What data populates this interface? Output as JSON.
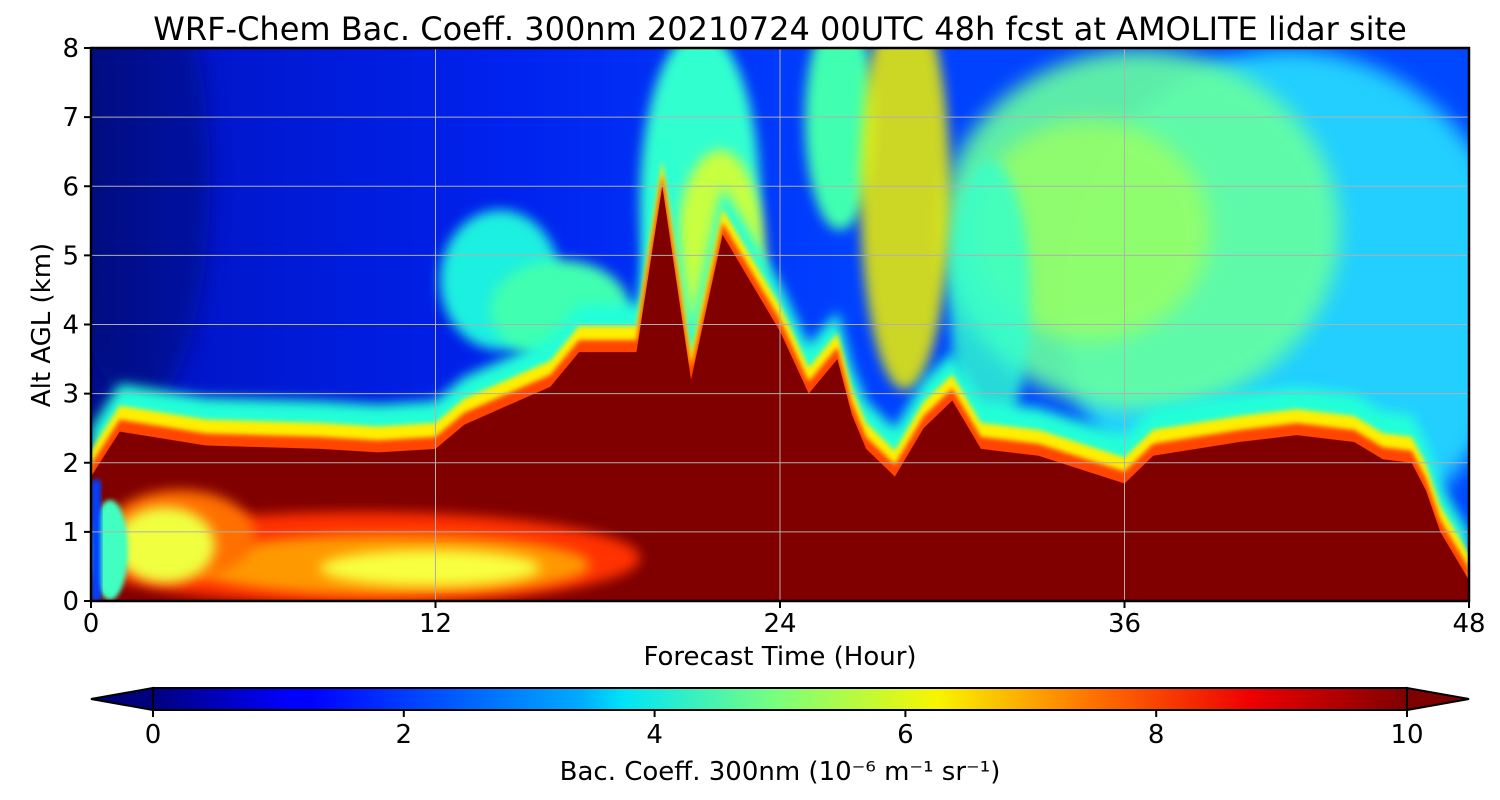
{
  "chart_data": {
    "type": "heatmap",
    "title": "WRF-Chem Bac. Coeff. 300nm  20210724 00UTC 48h fcst at AMOLITE lidar site",
    "xlabel": "Forecast Time (Hour)",
    "ylabel": "Alt AGL (km)",
    "xlim": [
      0,
      48
    ],
    "ylim": [
      0,
      8
    ],
    "xticks": [
      "0",
      "12",
      "24",
      "36",
      "48"
    ],
    "yticks": [
      "0",
      "1",
      "2",
      "3",
      "4",
      "5",
      "6",
      "7",
      "8"
    ],
    "grid": true,
    "colormap": "jet",
    "colorbar": {
      "label": "Bac. Coeff. 300nm  (10⁻⁶ m⁻¹ sr⁻¹)",
      "range": [
        0,
        10
      ],
      "ticks": [
        "0",
        "2",
        "4",
        "6",
        "8",
        "10"
      ],
      "extend": "both",
      "orientation": "horizontal"
    },
    "layer_top_km": [
      {
        "hour": 0,
        "alt": 1.8
      },
      {
        "hour": 1,
        "alt": 2.45
      },
      {
        "hour": 4,
        "alt": 2.25
      },
      {
        "hour": 8,
        "alt": 2.2
      },
      {
        "hour": 10,
        "alt": 2.15
      },
      {
        "hour": 12,
        "alt": 2.2
      },
      {
        "hour": 13,
        "alt": 2.55
      },
      {
        "hour": 16,
        "alt": 3.1
      },
      {
        "hour": 17,
        "alt": 3.6
      },
      {
        "hour": 19,
        "alt": 3.6
      },
      {
        "hour": 19.9,
        "alt": 6.0
      },
      {
        "hour": 20.9,
        "alt": 3.2
      },
      {
        "hour": 22,
        "alt": 5.3
      },
      {
        "hour": 24,
        "alt": 3.9
      },
      {
        "hour": 25,
        "alt": 3.0
      },
      {
        "hour": 26,
        "alt": 3.5
      },
      {
        "hour": 26.5,
        "alt": 2.7
      },
      {
        "hour": 27,
        "alt": 2.2
      },
      {
        "hour": 28,
        "alt": 1.8
      },
      {
        "hour": 29,
        "alt": 2.5
      },
      {
        "hour": 30,
        "alt": 2.9
      },
      {
        "hour": 31,
        "alt": 2.2
      },
      {
        "hour": 33,
        "alt": 2.1
      },
      {
        "hour": 36,
        "alt": 1.7
      },
      {
        "hour": 37,
        "alt": 2.1
      },
      {
        "hour": 40,
        "alt": 2.3
      },
      {
        "hour": 42,
        "alt": 2.4
      },
      {
        "hour": 44,
        "alt": 2.3
      },
      {
        "hour": 45,
        "alt": 2.05
      },
      {
        "hour": 46,
        "alt": 2.0
      },
      {
        "hour": 46.5,
        "alt": 1.6
      },
      {
        "hour": 47,
        "alt": 1.0
      },
      {
        "hour": 48,
        "alt": 0.3
      }
    ]
  }
}
